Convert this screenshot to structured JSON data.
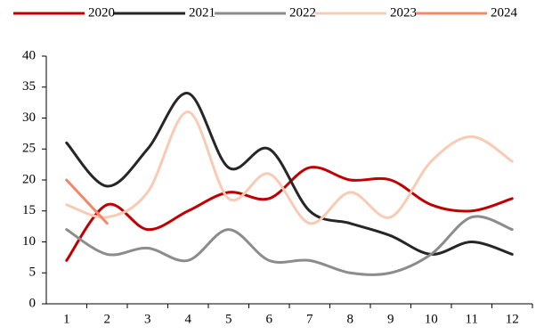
{
  "chart_data": {
    "type": "line",
    "smooth": true,
    "categories": [
      "1",
      "2",
      "3",
      "4",
      "5",
      "6",
      "7",
      "8",
      "9",
      "10",
      "11",
      "12"
    ],
    "series": [
      {
        "name": "2020",
        "color": "#c00000",
        "values": [
          7,
          16,
          12,
          15,
          18,
          17,
          22,
          20,
          20,
          16,
          15,
          17
        ]
      },
      {
        "name": "2021",
        "color": "#262626",
        "values": [
          26,
          19,
          25,
          34,
          22,
          25,
          15,
          13,
          11,
          8,
          10,
          8
        ]
      },
      {
        "name": "2022",
        "color": "#8c8c8c",
        "values": [
          12,
          8,
          9,
          7,
          12,
          7,
          7,
          5,
          5,
          8,
          14,
          12
        ]
      },
      {
        "name": "2023",
        "color": "#f9cbb4",
        "values": [
          16,
          14,
          18,
          31,
          17,
          21,
          13,
          18,
          14,
          23,
          27,
          23
        ]
      },
      {
        "name": "2024",
        "color": "#f0896a",
        "values": [
          20,
          13,
          null,
          null,
          null,
          null,
          null,
          null,
          null,
          null,
          null,
          null
        ]
      }
    ],
    "ylim": [
      0,
      40
    ],
    "yticks": [
      0,
      5,
      10,
      15,
      20,
      25,
      30,
      35,
      40
    ],
    "grid": false,
    "legend": "top"
  }
}
